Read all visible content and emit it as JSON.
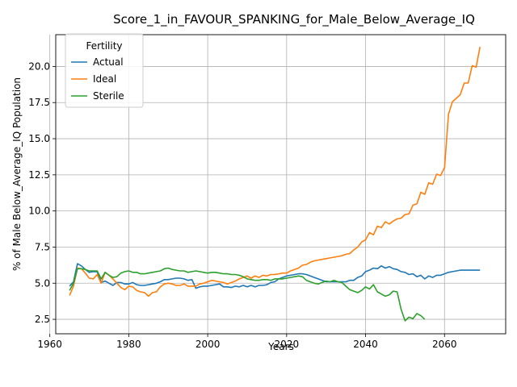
{
  "chart_data": {
    "type": "line",
    "title": "Score_1_in_FAVOUR_SPANKING_for_Male_Below_Average_IQ",
    "xlabel": "Years",
    "ylabel": "% of Male Below_Average_IQ Population",
    "xlim": [
      1961.5,
      2075.5
    ],
    "ylim": [
      1.5,
      22.2
    ],
    "grid": true,
    "legend": {
      "title": "Fertility",
      "position": "upper-left"
    },
    "x_ticks": [
      1960,
      1980,
      2000,
      2020,
      2040,
      2060
    ],
    "x_tick_labels": [
      "1960",
      "1980",
      "2000",
      "2020",
      "2040",
      "2060"
    ],
    "y_ticks": [
      2.5,
      5.0,
      7.5,
      10.0,
      12.5,
      15.0,
      17.5,
      20.0
    ],
    "y_tick_labels": [
      "2.5",
      "5.0",
      "7.5",
      "10.0",
      "12.5",
      "15.0",
      "17.5",
      "20.0"
    ],
    "series": [
      {
        "name": "Actual",
        "color": "#1f77b4",
        "x_start": 1965,
        "values": [
          4.8,
          5.1,
          6.35,
          6.2,
          5.95,
          5.75,
          5.8,
          5.8,
          5.05,
          5.15,
          5.0,
          4.85,
          5.05,
          5.05,
          4.95,
          4.95,
          5.05,
          4.9,
          4.85,
          4.85,
          4.9,
          4.95,
          5.0,
          5.1,
          5.25,
          5.25,
          5.3,
          5.35,
          5.35,
          5.3,
          5.2,
          5.25,
          4.65,
          4.75,
          4.8,
          4.8,
          4.85,
          4.9,
          4.95,
          4.75,
          4.75,
          4.7,
          4.8,
          4.75,
          4.85,
          4.75,
          4.85,
          4.75,
          4.85,
          4.85,
          4.9,
          5.05,
          5.1,
          5.3,
          5.4,
          5.5,
          5.55,
          5.6,
          5.65,
          5.65,
          5.6,
          5.5,
          5.4,
          5.3,
          5.2,
          5.1,
          5.1,
          5.1,
          5.1,
          5.1,
          5.1,
          5.2,
          5.2,
          5.4,
          5.5,
          5.8,
          5.9,
          6.05,
          6.0,
          6.2,
          6.05,
          6.15,
          6.0,
          5.95,
          5.8,
          5.75,
          5.6,
          5.65,
          5.45,
          5.55,
          5.3,
          5.5,
          5.4,
          5.55,
          5.55,
          5.65,
          5.75,
          5.8,
          5.85,
          5.9,
          5.9,
          5.9,
          5.9,
          5.9,
          5.9
        ]
      },
      {
        "name": "Ideal",
        "color": "#ff7f0e",
        "x_start": 1965,
        "values": [
          4.15,
          4.8,
          6.05,
          6.0,
          5.7,
          5.35,
          5.3,
          5.6,
          5.0,
          5.75,
          5.55,
          5.3,
          5.0,
          4.7,
          4.55,
          4.8,
          4.75,
          4.5,
          4.4,
          4.35,
          4.1,
          4.35,
          4.4,
          4.75,
          4.95,
          5.0,
          4.95,
          4.85,
          4.85,
          4.95,
          4.8,
          4.8,
          4.8,
          4.95,
          5.0,
          5.1,
          5.2,
          5.15,
          5.1,
          5.05,
          4.95,
          5.05,
          5.15,
          5.3,
          5.4,
          5.5,
          5.35,
          5.5,
          5.4,
          5.55,
          5.5,
          5.6,
          5.6,
          5.65,
          5.7,
          5.7,
          5.85,
          5.95,
          6.05,
          6.25,
          6.3,
          6.45,
          6.55,
          6.6,
          6.65,
          6.7,
          6.75,
          6.8,
          6.85,
          6.9,
          7.0,
          7.05,
          7.3,
          7.5,
          7.85,
          8.0,
          8.5,
          8.35,
          8.95,
          8.85,
          9.25,
          9.1,
          9.3,
          9.45,
          9.5,
          9.75,
          9.8,
          10.4,
          10.5,
          11.3,
          11.15,
          11.95,
          11.85,
          12.55,
          12.45,
          13.0,
          16.7,
          17.55,
          17.8,
          18.05,
          18.85,
          18.85,
          20.05,
          19.95,
          21.35
        ]
      },
      {
        "name": "Sterile",
        "color": "#2ca02c",
        "x_start": 1965,
        "values": [
          4.5,
          5.0,
          6.0,
          6.0,
          5.95,
          5.85,
          5.85,
          5.85,
          5.3,
          5.75,
          5.55,
          5.4,
          5.45,
          5.7,
          5.8,
          5.85,
          5.75,
          5.75,
          5.65,
          5.65,
          5.7,
          5.75,
          5.8,
          5.85,
          6.0,
          6.05,
          5.95,
          5.9,
          5.85,
          5.85,
          5.75,
          5.8,
          5.85,
          5.8,
          5.75,
          5.7,
          5.75,
          5.75,
          5.7,
          5.65,
          5.65,
          5.6,
          5.6,
          5.55,
          5.45,
          5.3,
          5.25,
          5.2,
          5.2,
          5.25,
          5.25,
          5.2,
          5.3,
          5.3,
          5.3,
          5.35,
          5.4,
          5.45,
          5.5,
          5.45,
          5.2,
          5.1,
          5.0,
          4.95,
          5.05,
          5.15,
          5.1,
          5.2,
          5.1,
          5.05,
          4.8,
          4.55,
          4.45,
          4.35,
          4.5,
          4.75,
          4.6,
          4.9,
          4.4,
          4.25,
          4.1,
          4.2,
          4.45,
          4.4,
          3.2,
          2.4,
          2.65,
          2.55,
          2.9,
          2.75,
          2.5
        ]
      }
    ]
  }
}
